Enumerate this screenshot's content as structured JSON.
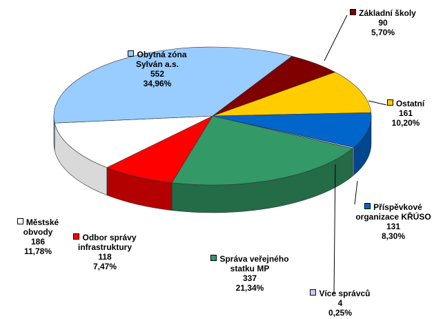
{
  "chart_data": {
    "type": "pie",
    "categories": [
      "Základní školy",
      "Ostatní",
      "Příspěvkové organizace KŘÚSO",
      "Více správců",
      "Správa veřejného statku MP",
      "Odbor správy infrastruktury",
      "Městské obvody",
      "Obytná zóna Sylván a.s."
    ],
    "values": [
      90,
      161,
      131,
      4,
      337,
      118,
      186,
      552
    ],
    "percent_labels": [
      "5,70%",
      "10,20%",
      "8,30%",
      "0,25%",
      "21,34%",
      "7,47%",
      "11,78%",
      "34,96%"
    ],
    "colors": [
      "#800000",
      "#ffcc00",
      "#0066cc",
      "#ccccff",
      "#339966",
      "#ff0000",
      "#ffffff",
      "#99ccff"
    ]
  }
}
